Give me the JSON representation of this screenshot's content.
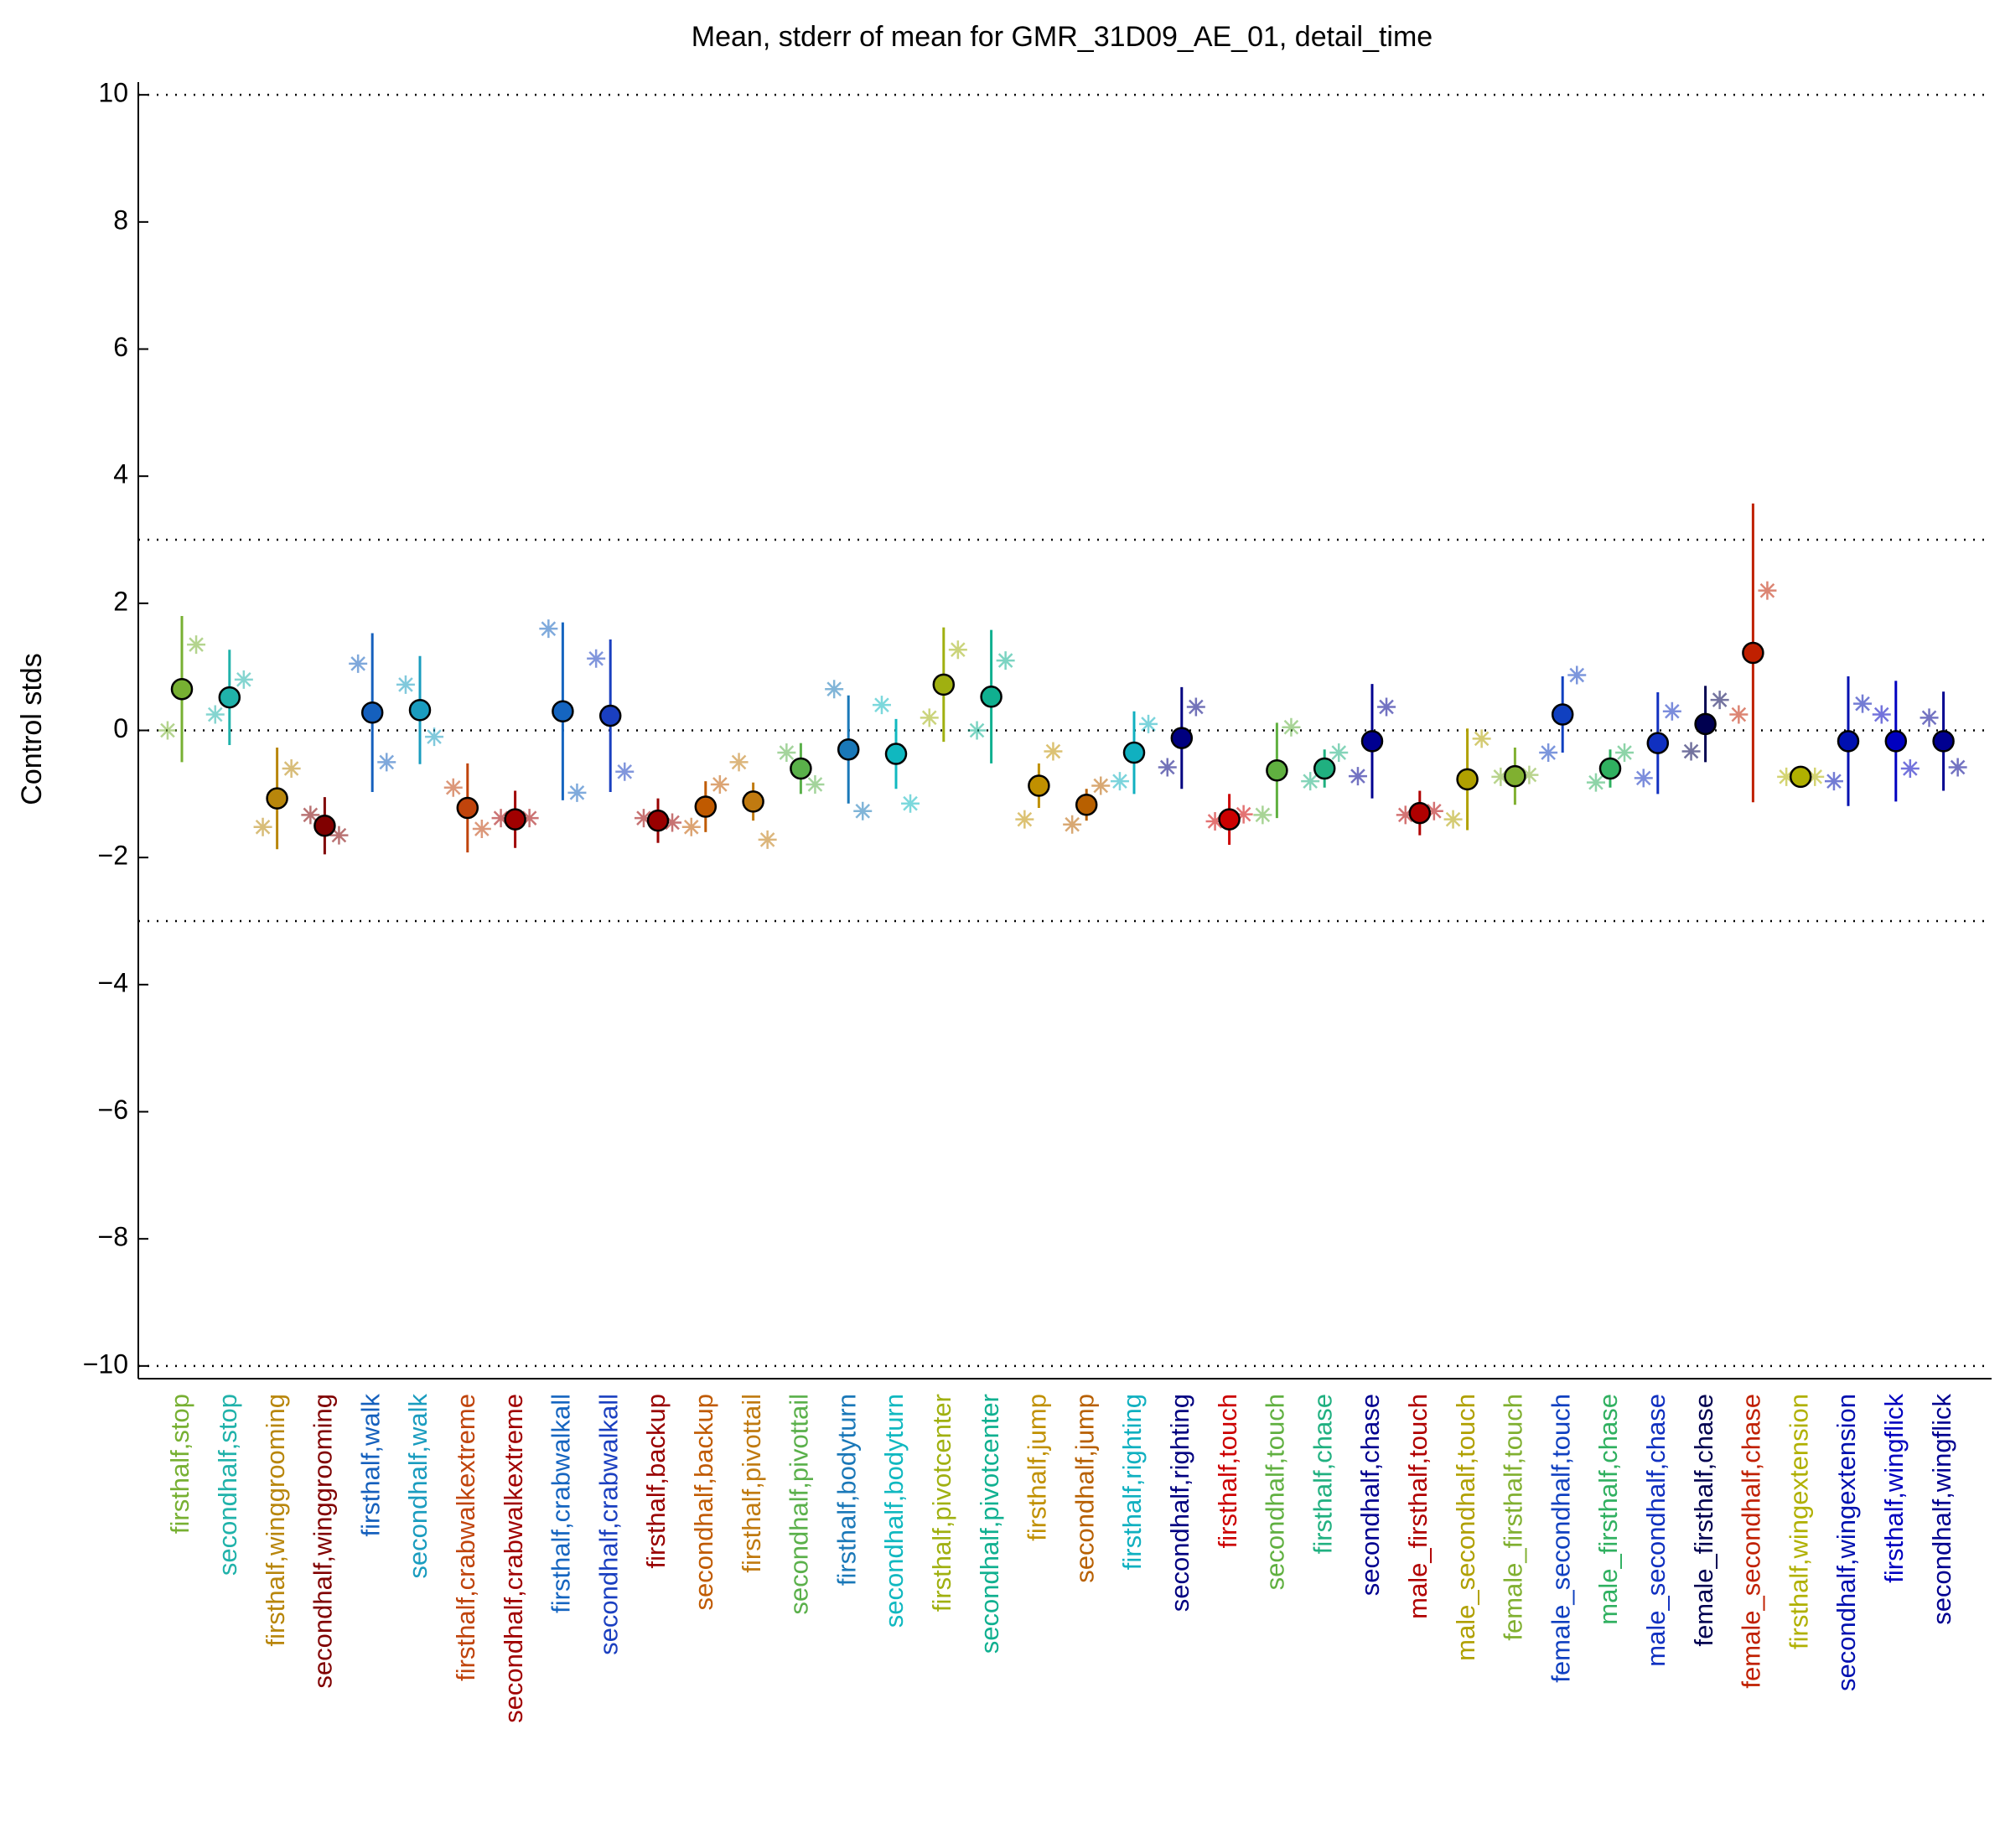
{
  "chart_data": {
    "type": "errorbar",
    "title": "Mean, stderr of mean for GMR_31D09_AE_01, detail_time",
    "ylabel": "Control stds",
    "ylim": [
      -10.2,
      10.2
    ],
    "yticks": [
      {
        "value": -10,
        "label": "−10"
      },
      {
        "value": -8,
        "label": "−8"
      },
      {
        "value": -6,
        "label": "−6"
      },
      {
        "value": -4,
        "label": "−4"
      },
      {
        "value": -2,
        "label": "−2"
      },
      0,
      2,
      4,
      6,
      8,
      10
    ],
    "reference_lines": [
      -10,
      -3,
      0,
      3,
      10
    ],
    "categories": [
      "firsthalf,stop",
      "secondhalf,stop",
      "firsthalf,winggrooming",
      "secondhalf,winggrooming",
      "firsthalf,walk",
      "secondhalf,walk",
      "firsthalf,crabwalkextreme",
      "secondhalf,crabwalkextreme",
      "firsthalf,crabwalkall",
      "secondhalf,crabwalkall",
      "firsthalf,backup",
      "secondhalf,backup",
      "firsthalf,pivottail",
      "secondhalf,pivottail",
      "firsthalf,bodyturn",
      "secondhalf,bodyturn",
      "firsthalf,pivotcenter",
      "secondhalf,pivotcenter",
      "firsthalf,jump",
      "secondhalf,jump",
      "firsthalf,righting",
      "secondhalf,righting",
      "firsthalf,touch",
      "secondhalf,touch",
      "firsthalf,chase",
      "secondhalf,chase",
      "male_firsthalf,touch",
      "male_secondhalf,touch",
      "female_firsthalf,touch",
      "female_secondhalf,touch",
      "male_firsthalf,chase",
      "male_secondhalf,chase",
      "female_firsthalf,chase",
      "female_secondhalf,chase",
      "firsthalf,wingextension",
      "secondhalf,wingextension",
      "firsthalf,wingflick",
      "secondhalf,wingflick"
    ],
    "colors": [
      "#77b032",
      "#20b2aa",
      "#b8860b",
      "#800000",
      "#1560bd",
      "#1a9cbf",
      "#c0440c",
      "#a00000",
      "#1565c0",
      "#1a3fc0",
      "#990000",
      "#c05a00",
      "#c07a10",
      "#5ab04a",
      "#1a78b8",
      "#10b8c0",
      "#a0b010",
      "#10b090",
      "#c09000",
      "#b86000",
      "#10b0c0",
      "#000080",
      "#cc0000",
      "#60b040",
      "#20b080",
      "#000090",
      "#b00000",
      "#b0a000",
      "#80b030",
      "#1040c0",
      "#30b060",
      "#1030c0",
      "#000050",
      "#c02000",
      "#b0b000",
      "#0010b0",
      "#0000c0",
      "#000090"
    ],
    "values": [
      0.65,
      0.52,
      -1.07,
      -1.5,
      0.28,
      0.32,
      -1.22,
      -1.4,
      0.3,
      0.23,
      -1.42,
      -1.2,
      -1.12,
      -0.6,
      -0.3,
      -0.37,
      0.72,
      0.53,
      -0.87,
      -1.17,
      -0.35,
      -0.12,
      -1.4,
      -0.63,
      -0.6,
      -0.17,
      -1.3,
      -0.77,
      -0.72,
      0.25,
      -0.6,
      -0.2,
      0.1,
      1.22,
      -0.73,
      -0.17,
      -0.17,
      -0.17
    ],
    "errors": [
      1.15,
      0.75,
      0.8,
      0.45,
      1.25,
      0.85,
      0.7,
      0.45,
      1.4,
      1.2,
      0.35,
      0.4,
      0.3,
      0.4,
      0.85,
      0.55,
      0.9,
      1.05,
      0.35,
      0.25,
      0.65,
      0.8,
      0.4,
      0.75,
      0.3,
      0.9,
      0.35,
      0.8,
      0.45,
      0.6,
      0.3,
      0.8,
      0.6,
      2.35,
      0.08,
      1.02,
      0.95,
      0.78
    ],
    "left_values": [
      0,
      0.25,
      -1.52,
      -1.33,
      1.05,
      0.72,
      -0.9,
      -1.38,
      1.6,
      1.13,
      -1.38,
      -1.52,
      -0.5,
      -0.35,
      0.65,
      0.4,
      0.2,
      0,
      -1.4,
      -1.48,
      -0.8,
      -0.58,
      -1.43,
      -1.33,
      -0.8,
      -0.72,
      -1.33,
      -1.4,
      -0.73,
      -0.35,
      -0.82,
      -0.75,
      -0.33,
      0.25,
      -0.73,
      -0.8,
      0.25,
      0.2
    ],
    "right_values": [
      1.35,
      0.8,
      -0.6,
      -1.65,
      -0.5,
      -0.1,
      -1.55,
      -1.38,
      -0.98,
      -0.65,
      -1.45,
      -0.85,
      -1.72,
      -0.85,
      -1.27,
      -1.15,
      1.27,
      1.1,
      -0.33,
      -0.87,
      0.1,
      0.37,
      -1.32,
      0.05,
      -0.35,
      0.37,
      -1.27,
      -0.13,
      -0.7,
      0.87,
      -0.35,
      0.3,
      0.48,
      2.2,
      -0.73,
      0.42,
      -0.6,
      -0.58
    ]
  }
}
